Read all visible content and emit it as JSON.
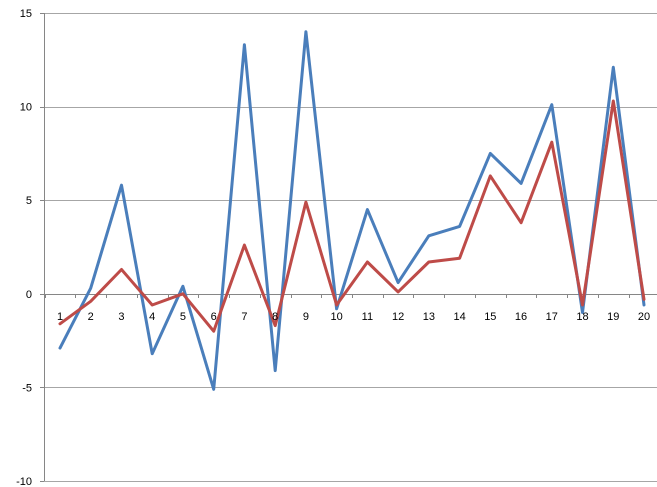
{
  "chart_data": {
    "type": "line",
    "title": "",
    "xlabel": "",
    "ylabel": "",
    "categories": [
      "1",
      "2",
      "3",
      "4",
      "5",
      "6",
      "7",
      "8",
      "9",
      "10",
      "11",
      "12",
      "13",
      "14",
      "15",
      "16",
      "17",
      "18",
      "19",
      "20"
    ],
    "ylim": [
      -10,
      15
    ],
    "yticks": [
      "15",
      "10",
      "5",
      "0",
      "-5",
      "-10"
    ],
    "grid": true,
    "legend": "none",
    "series": [
      {
        "color": "#4a7ebb",
        "values": [
          -2.9,
          0.3,
          5.8,
          -3.2,
          0.4,
          -5.1,
          13.3,
          -4.1,
          14.0,
          -0.8,
          4.5,
          0.6,
          3.1,
          3.6,
          7.5,
          5.9,
          10.1,
          -1.0,
          12.1,
          -0.6
        ]
      },
      {
        "color": "#be4b48",
        "values": [
          -1.6,
          -0.4,
          1.3,
          -0.6,
          0.0,
          -2.0,
          2.6,
          -1.7,
          4.9,
          -0.6,
          1.7,
          0.1,
          1.7,
          1.9,
          6.3,
          3.8,
          8.1,
          -0.6,
          10.3,
          -0.3
        ]
      }
    ]
  }
}
